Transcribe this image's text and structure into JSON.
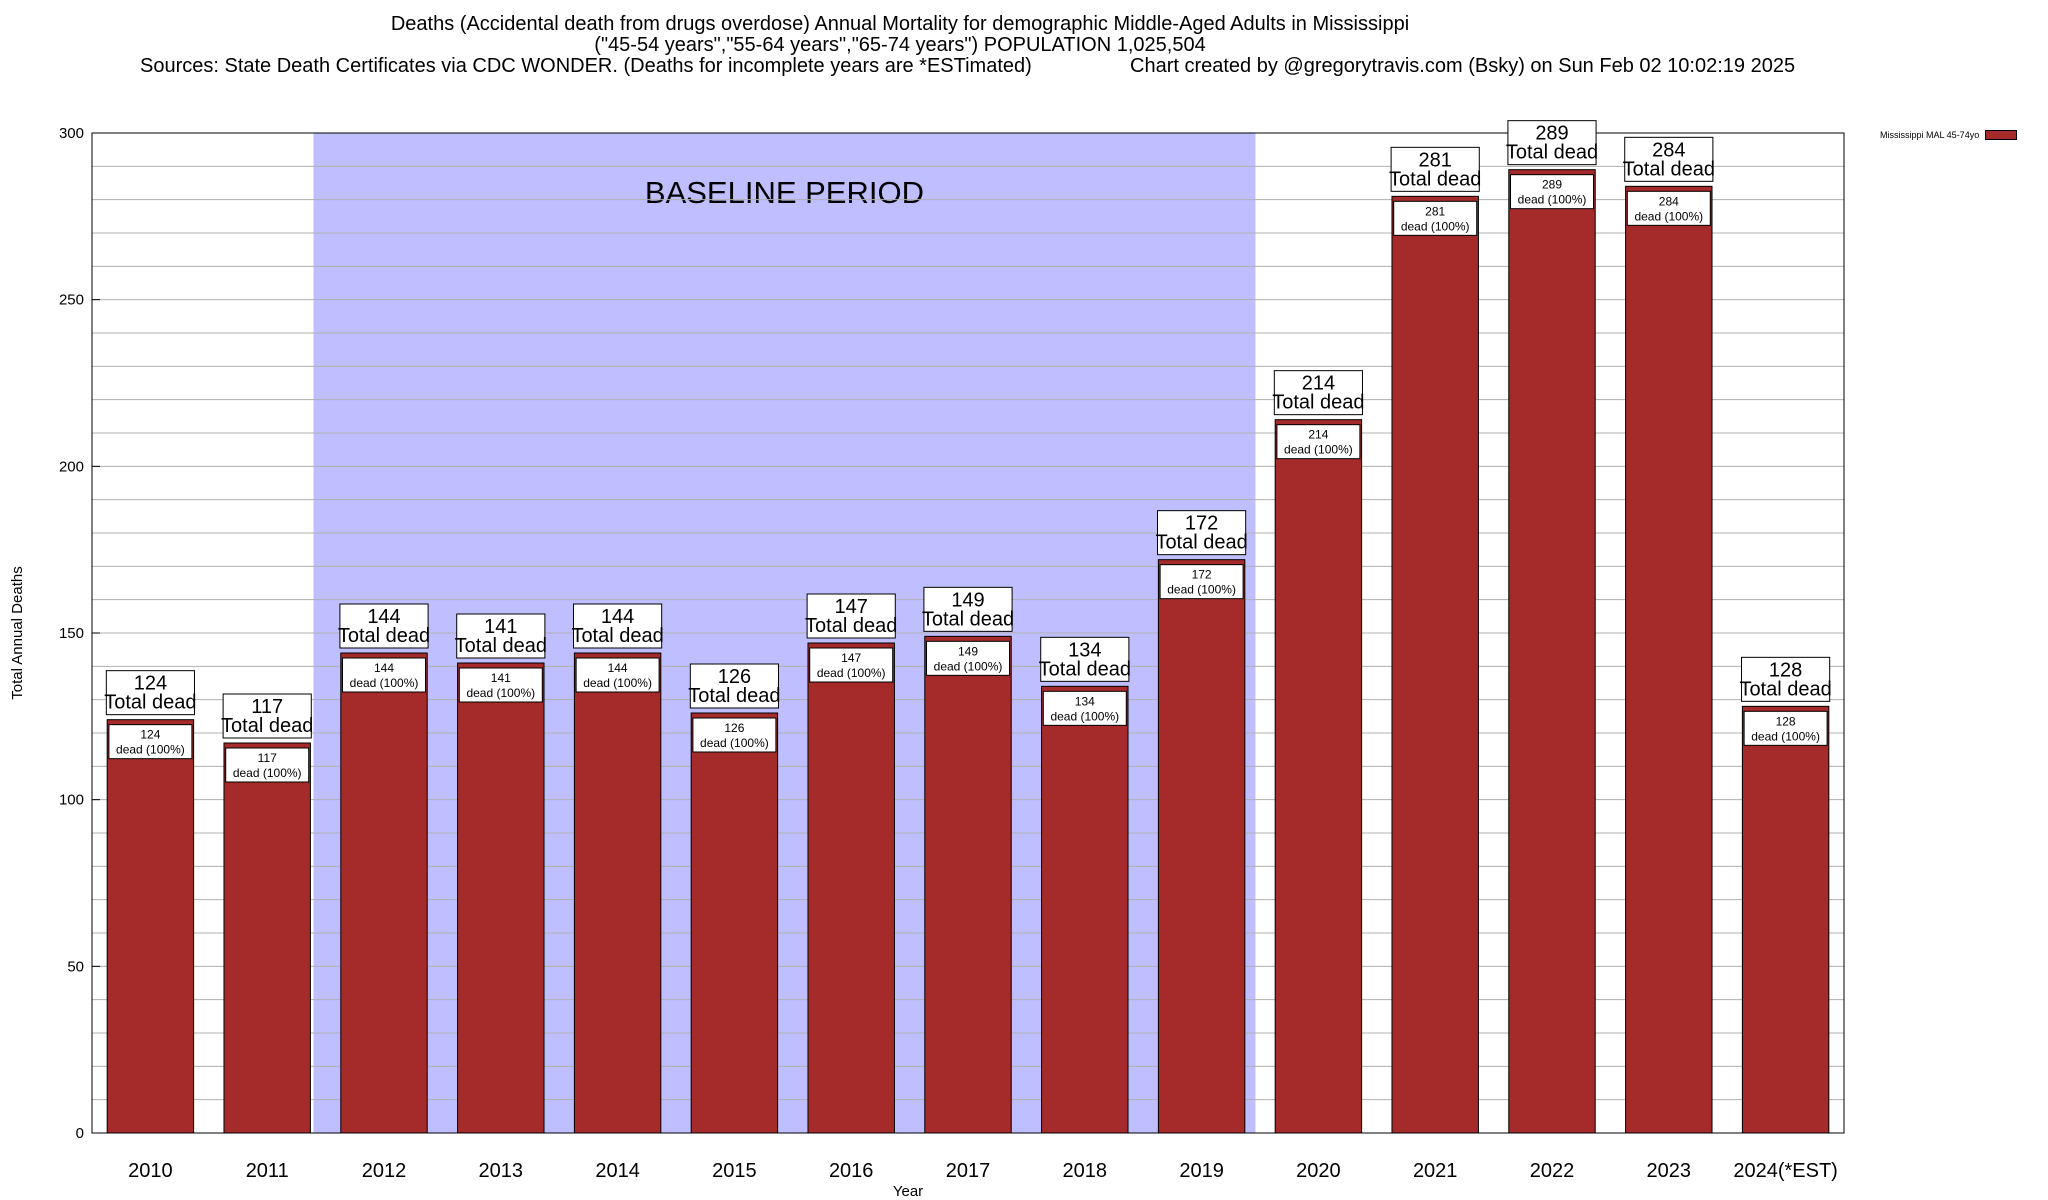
{
  "titles": {
    "line1": "Deaths (Accidental death from drugs overdose) Annual Mortality for demographic Middle-Aged Adults in Mississippi",
    "line2": "(\"45-54 years\",\"55-64 years\",\"65-74 years\") POPULATION 1,025,504",
    "line3": "Sources: State Death Certificates via CDC WONDER. (Deaths for incomplete years are *ESTimated)",
    "line3b": "Chart created by @gregorytravis.com (Bsky) on Sun Feb 02 10:02:19 2025"
  },
  "legend": {
    "label": "Mississippi MAL 45-74yo"
  },
  "colors": {
    "bar": "#a52a2a",
    "baseline": "#bfbfff",
    "grid": "#b0b0b0"
  },
  "chart_data": {
    "type": "bar",
    "categories": [
      "2010",
      "2011",
      "2012",
      "2013",
      "2014",
      "2015",
      "2016",
      "2017",
      "2018",
      "2019",
      "2020",
      "2021",
      "2022",
      "2023",
      "2024(*EST)"
    ],
    "series": [
      {
        "name": "Mississippi MAL 45-74yo",
        "values": [
          124,
          117,
          144,
          141,
          144,
          126,
          147,
          149,
          134,
          172,
          214,
          281,
          289,
          284,
          128
        ]
      }
    ],
    "bar_label_suffix": "Total dead",
    "inner_label_suffix": "dead (100%)",
    "xlabel": "Year",
    "ylabel": "Total Annual Deaths",
    "ylim": [
      0,
      300
    ],
    "yticks": [
      0,
      50,
      100,
      150,
      200,
      250,
      300
    ],
    "grid": true,
    "legend_position": "top-right",
    "annotation": {
      "text": "BASELINE PERIOD",
      "from_category": "2012",
      "to_category": "2019"
    }
  }
}
